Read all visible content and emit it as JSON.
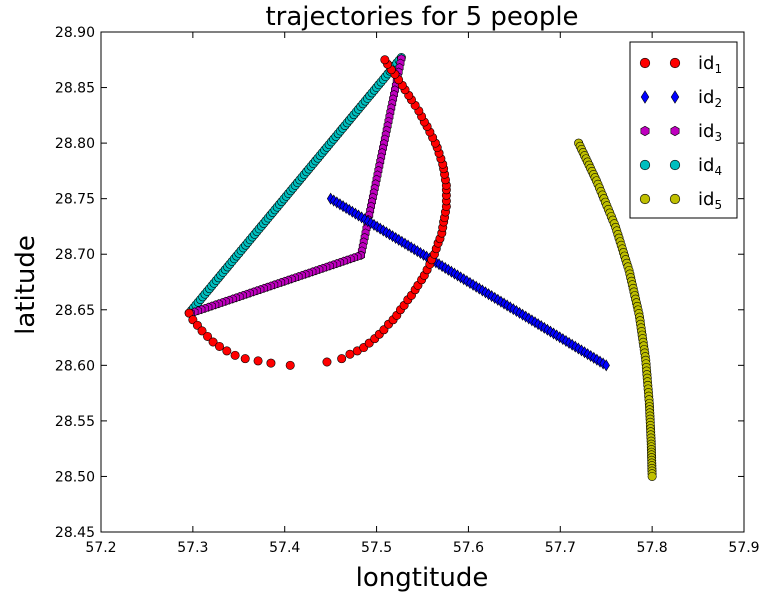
{
  "chart_data": {
    "type": "scatter",
    "title": "trajectories for 5 people",
    "xlabel": "longtitude",
    "ylabel": "latitude",
    "xlim": [
      57.2,
      57.9
    ],
    "ylim": [
      28.45,
      28.9
    ],
    "xticks": [
      "57.2",
      "57.3",
      "57.4",
      "57.5",
      "57.6",
      "57.7",
      "57.8",
      "57.9"
    ],
    "yticks": [
      "28.45",
      "28.50",
      "28.55",
      "28.60",
      "28.65",
      "28.70",
      "28.75",
      "28.80",
      "28.85",
      "28.90"
    ],
    "grid": false,
    "legend_position": "top-right",
    "series": [
      {
        "name": "id",
        "subscript": "1",
        "color": "#ff0000",
        "marker": "circle",
        "points": [
          [
            57.296,
            28.647
          ],
          [
            57.3,
            28.641
          ],
          [
            57.305,
            28.636
          ],
          [
            57.31,
            28.631
          ],
          [
            57.316,
            28.626
          ],
          [
            57.322,
            28.621
          ],
          [
            57.329,
            28.617
          ],
          [
            57.337,
            28.613
          ],
          [
            57.346,
            28.609
          ],
          [
            57.357,
            28.606
          ],
          [
            57.371,
            28.604
          ],
          [
            57.385,
            28.602
          ],
          [
            57.406,
            28.6
          ],
          [
            57.446,
            28.603
          ],
          [
            57.462,
            28.606
          ],
          [
            57.471,
            28.61
          ],
          [
            57.479,
            28.613
          ],
          [
            57.486,
            28.616
          ],
          [
            57.492,
            28.62
          ],
          [
            57.498,
            28.624
          ],
          [
            57.503,
            28.628
          ],
          [
            57.508,
            28.632
          ],
          [
            57.513,
            28.637
          ],
          [
            57.518,
            28.641
          ],
          [
            57.522,
            28.645
          ],
          [
            57.526,
            28.65
          ],
          [
            57.53,
            28.654
          ],
          [
            57.534,
            28.659
          ],
          [
            57.538,
            28.663
          ],
          [
            57.542,
            28.668
          ],
          [
            57.545,
            28.672
          ],
          [
            57.549,
            28.677
          ],
          [
            57.552,
            28.681
          ],
          [
            57.555,
            28.686
          ],
          [
            57.558,
            28.691
          ],
          [
            57.56,
            28.695
          ],
          [
            57.563,
            28.7
          ],
          [
            57.565,
            28.705
          ],
          [
            57.567,
            28.71
          ],
          [
            57.569,
            28.714
          ],
          [
            57.571,
            28.719
          ],
          [
            57.572,
            28.724
          ],
          [
            57.573,
            28.729
          ],
          [
            57.574,
            28.733
          ],
          [
            57.575,
            28.738
          ],
          [
            57.576,
            28.743
          ],
          [
            57.576,
            28.748
          ],
          [
            57.576,
            28.753
          ],
          [
            57.576,
            28.758
          ],
          [
            57.576,
            28.762
          ],
          [
            57.575,
            28.767
          ],
          [
            57.574,
            28.772
          ],
          [
            57.573,
            28.777
          ],
          [
            57.572,
            28.781
          ],
          [
            57.57,
            28.786
          ],
          [
            57.568,
            28.791
          ],
          [
            57.566,
            28.796
          ],
          [
            57.564,
            28.8
          ],
          [
            57.561,
            28.805
          ],
          [
            57.558,
            28.81
          ],
          [
            57.555,
            28.815
          ],
          [
            57.552,
            28.819
          ],
          [
            57.549,
            28.824
          ],
          [
            57.546,
            28.829
          ],
          [
            57.542,
            28.834
          ],
          [
            57.538,
            28.839
          ],
          [
            57.535,
            28.843
          ],
          [
            57.531,
            28.848
          ],
          [
            57.528,
            28.852
          ],
          [
            57.524,
            28.857
          ],
          [
            57.52,
            28.862
          ],
          [
            57.516,
            28.866
          ],
          [
            57.512,
            28.871
          ],
          [
            57.509,
            28.875
          ]
        ]
      },
      {
        "name": "id",
        "subscript": "2",
        "color": "#0000ff",
        "marker": "diamond",
        "start": [
          57.45,
          28.75
        ],
        "end": [
          57.75,
          28.6
        ],
        "count": 90
      },
      {
        "name": "id",
        "subscript": "3",
        "color": "#bf00bf",
        "marker": "hexagon",
        "segments": [
          {
            "start": [
              57.527,
              28.876
            ],
            "end": [
              57.483,
              28.699
            ],
            "count": 45
          },
          {
            "start": [
              57.483,
              28.699
            ],
            "end": [
              57.298,
              28.647
            ],
            "count": 50
          }
        ]
      },
      {
        "name": "id",
        "subscript": "4",
        "color": "#00bfbf",
        "marker": "circle",
        "start": [
          57.296,
          28.647
        ],
        "end": [
          57.527,
          28.877
        ],
        "count": 95
      },
      {
        "name": "id",
        "subscript": "5",
        "color": "#bfbf00",
        "marker": "circle",
        "curve": {
          "x": [
            57.72,
            57.74,
            57.76,
            57.775,
            57.786,
            57.793,
            57.797,
            57.799,
            57.8
          ],
          "y": [
            28.8,
            28.765,
            28.725,
            28.685,
            28.645,
            28.605,
            28.565,
            28.53,
            28.5
          ]
        },
        "count": 100
      }
    ]
  }
}
